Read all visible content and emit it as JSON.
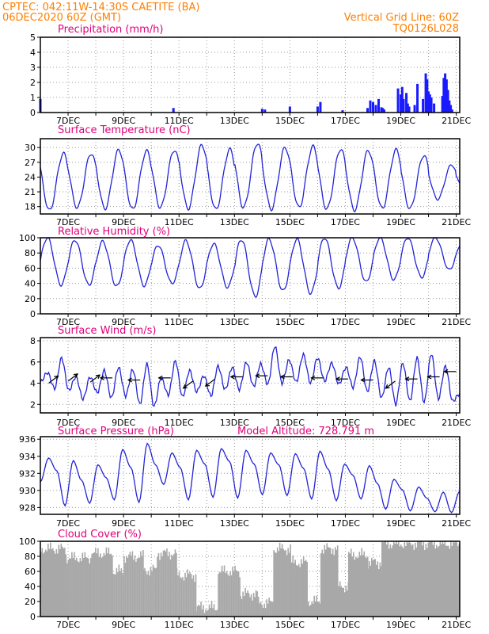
{
  "header": {
    "line1": "CPTEC:   042:11W-14:30S   CAETITE (BA)",
    "line2": "06DEC2020 60Z (GMT)",
    "right1": "Vertical Grid Line: 60Z",
    "right2": "TQ0126L028"
  },
  "x_tick_labels": [
    "7DEC",
    "9DEC",
    "11DEC",
    "13DEC",
    "15DEC",
    "17DEC",
    "19DEC",
    "21DEC"
  ],
  "colors": {
    "line": "#2323d6",
    "bar_precip": "#1a1aff",
    "bar_cloud": "#a8a8a8",
    "grid": "#999999",
    "title": "#e0007a",
    "header": "#ff7f00",
    "wind_arrow": "#000000"
  },
  "chart_data": [
    {
      "id": "precip",
      "type": "bar",
      "title": "Precipitation (mm/h)",
      "ylim": [
        0,
        5
      ],
      "yticks": [
        0,
        1,
        2,
        3,
        4,
        5
      ],
      "x_range_days": [
        6,
        21.125
      ],
      "x": [
        6.0,
        10.8,
        14.0,
        14.1,
        15.0,
        16.0,
        16.1,
        16.9,
        17.8,
        17.9,
        18.0,
        18.1,
        18.2,
        18.3,
        18.35,
        18.4,
        18.9,
        19.0,
        19.05,
        19.1,
        19.2,
        19.25,
        19.3,
        19.5,
        19.6,
        19.8,
        19.9,
        19.95,
        20.0,
        20.05,
        20.1,
        20.2,
        20.5,
        20.55,
        20.6,
        20.65,
        20.7,
        20.75,
        20.8,
        20.85
      ],
      "values": [
        0.9,
        0.3,
        0.25,
        0.2,
        0.4,
        0.4,
        0.7,
        0.15,
        0.3,
        0.8,
        0.7,
        0.5,
        0.9,
        0.35,
        0.3,
        0.2,
        1.6,
        1.2,
        1.7,
        0.9,
        1.3,
        0.6,
        0.4,
        0.5,
        1.9,
        0.9,
        2.6,
        2.2,
        1.4,
        1.2,
        1.0,
        0.6,
        1.1,
        2.3,
        2.6,
        2.2,
        1.5,
        0.8,
        0.5,
        0.2
      ]
    },
    {
      "id": "temp",
      "type": "line",
      "title": "Surface Temperature (nC)",
      "ylim": [
        16.5,
        31.8
      ],
      "yticks": [
        18,
        21,
        24,
        27,
        30
      ],
      "x_range_days": [
        6,
        21.125
      ],
      "daily_cycle": [
        {
          "min": 17.2,
          "max": 28.8
        },
        {
          "min": 17.8,
          "max": 28.8
        },
        {
          "min": 17.6,
          "max": 29.5
        },
        {
          "min": 17.4,
          "max": 29.3
        },
        {
          "min": 17.8,
          "max": 29.5
        },
        {
          "min": 17.6,
          "max": 30.5
        },
        {
          "min": 17.4,
          "max": 29.6
        },
        {
          "min": 17.8,
          "max": 30.9
        },
        {
          "min": 17.5,
          "max": 30.0
        },
        {
          "min": 17.8,
          "max": 30.2
        },
        {
          "min": 17.5,
          "max": 29.7
        },
        {
          "min": 17.3,
          "max": 29.4
        },
        {
          "min": 17.6,
          "max": 29.5
        },
        {
          "min": 17.6,
          "max": 28.4
        },
        {
          "min": 19.5,
          "max": 26.5
        },
        {
          "min": 21.5,
          "max": 25.0
        }
      ]
    },
    {
      "id": "rh",
      "type": "line",
      "title": "Relative Humidity (%)",
      "ylim": [
        0,
        100
      ],
      "yticks": [
        0,
        20,
        40,
        60,
        80,
        100
      ],
      "x_range_days": [
        6,
        21.125
      ],
      "daily_cycle": [
        {
          "min": 38,
          "max": 100
        },
        {
          "min": 38,
          "max": 97
        },
        {
          "min": 36,
          "max": 95
        },
        {
          "min": 37,
          "max": 97
        },
        {
          "min": 40,
          "max": 90
        },
        {
          "min": 33,
          "max": 96
        },
        {
          "min": 35,
          "max": 92
        },
        {
          "min": 23,
          "max": 98
        },
        {
          "min": 30,
          "max": 98
        },
        {
          "min": 27,
          "max": 98
        },
        {
          "min": 34,
          "max": 100
        },
        {
          "min": 42,
          "max": 100
        },
        {
          "min": 45,
          "max": 100
        },
        {
          "min": 48,
          "max": 100
        },
        {
          "min": 58,
          "max": 100
        },
        {
          "min": 58,
          "max": 96
        }
      ]
    },
    {
      "id": "wind",
      "type": "line",
      "title": "Surface Wind (m/s)",
      "ylim": [
        1.2,
        8.3
      ],
      "yticks": [
        2,
        4,
        6,
        8
      ],
      "x_range_days": [
        6,
        21.125
      ],
      "speeds": [
        4.1,
        5.0,
        3.5,
        6.4,
        3.3,
        4.6,
        2.5,
        4.6,
        3.1,
        5.2,
        2.6,
        5.5,
        2.8,
        5.3,
        2.0,
        5.8,
        1.8,
        4.5,
        2.9,
        6.1,
        2.7,
        5.2,
        3.2,
        4.7,
        2.8,
        5.6,
        3.4,
        5.5,
        3.4,
        6.0,
        3.7,
        5.8,
        3.9,
        7.5,
        4.0,
        6.2,
        4.1,
        6.7,
        4.0,
        6.4,
        4.2,
        5.9,
        3.9,
        5.5,
        3.6,
        6.5,
        3.2,
        6.1,
        2.6,
        5.5,
        2.0,
        5.9,
        2.3,
        6.4,
        2.2,
        6.8,
        2.5,
        5.6,
        2.3,
        3.0
      ],
      "arrows": [
        {
          "x": 6.3,
          "y": 4.0,
          "dir": "ne"
        },
        {
          "x": 7.0,
          "y": 4.2,
          "dir": "ne"
        },
        {
          "x": 7.8,
          "y": 4.1,
          "dir": "ne"
        },
        {
          "x": 8.6,
          "y": 4.5,
          "dir": "w"
        },
        {
          "x": 9.6,
          "y": 4.3,
          "dir": "w"
        },
        {
          "x": 10.7,
          "y": 4.5,
          "dir": "w"
        },
        {
          "x": 11.5,
          "y": 4.2,
          "dir": "sw"
        },
        {
          "x": 12.3,
          "y": 4.4,
          "dir": "sw"
        },
        {
          "x": 13.3,
          "y": 4.6,
          "dir": "w"
        },
        {
          "x": 14.2,
          "y": 4.7,
          "dir": "w"
        },
        {
          "x": 15.1,
          "y": 4.6,
          "dir": "w"
        },
        {
          "x": 16.2,
          "y": 4.5,
          "dir": "w"
        },
        {
          "x": 17.1,
          "y": 4.4,
          "dir": "w"
        },
        {
          "x": 18.0,
          "y": 4.3,
          "dir": "w"
        },
        {
          "x": 18.8,
          "y": 4.2,
          "dir": "sw"
        },
        {
          "x": 19.6,
          "y": 4.4,
          "dir": "w"
        },
        {
          "x": 20.4,
          "y": 4.6,
          "dir": "w"
        },
        {
          "x": 21.0,
          "y": 5.1,
          "dir": "w"
        }
      ]
    },
    {
      "id": "pressure",
      "type": "line",
      "title": "Surface Pressure (hPa)",
      "subtitle": "Model Altitude: 728.791 m",
      "ylim": [
        927.2,
        936.3
      ],
      "yticks": [
        928,
        930,
        932,
        934,
        936
      ],
      "x_range_days": [
        6,
        21.125
      ],
      "series_values": [
        931.0,
        933.8,
        932.3,
        928.2,
        933.5,
        931.2,
        928.5,
        933.0,
        931.5,
        928.9,
        934.8,
        932.7,
        928.6,
        935.5,
        933.0,
        930.7,
        934.4,
        932.7,
        928.9,
        934.7,
        933.1,
        929.2,
        934.9,
        933.4,
        929.1,
        934.7,
        933.1,
        929.5,
        934.4,
        933.0,
        929.4,
        934.3,
        932.6,
        929.0,
        934.6,
        932.5,
        928.8,
        933.1,
        931.8,
        929.0,
        932.9,
        930.8,
        927.8,
        931.3,
        930.1,
        927.6,
        930.4,
        929.1,
        927.5,
        929.8,
        927.4,
        929.9
      ]
    },
    {
      "id": "cloud",
      "type": "bar",
      "title": "Cloud Cover (%)",
      "ylim": [
        0,
        100
      ],
      "yticks": [
        0,
        20,
        40,
        60,
        80,
        100
      ],
      "x_range_days": [
        6,
        21.125
      ],
      "segments": [
        {
          "start": 6.0,
          "end": 6.9,
          "value": 90
        },
        {
          "start": 6.9,
          "end": 7.8,
          "value": 78
        },
        {
          "start": 7.8,
          "end": 8.6,
          "value": 84
        },
        {
          "start": 8.6,
          "end": 9.0,
          "value": 60
        },
        {
          "start": 9.0,
          "end": 9.7,
          "value": 80
        },
        {
          "start": 9.7,
          "end": 10.2,
          "value": 62
        },
        {
          "start": 10.2,
          "end": 10.9,
          "value": 84
        },
        {
          "start": 10.9,
          "end": 11.6,
          "value": 55
        },
        {
          "start": 11.6,
          "end": 12.4,
          "value": 12
        },
        {
          "start": 12.4,
          "end": 13.2,
          "value": 60
        },
        {
          "start": 13.2,
          "end": 13.8,
          "value": 30
        },
        {
          "start": 13.8,
          "end": 14.4,
          "value": 18
        },
        {
          "start": 14.4,
          "end": 15.0,
          "value": 90
        },
        {
          "start": 15.0,
          "end": 15.6,
          "value": 72
        },
        {
          "start": 15.6,
          "end": 16.1,
          "value": 20
        },
        {
          "start": 16.1,
          "end": 16.7,
          "value": 90
        },
        {
          "start": 16.7,
          "end": 17.1,
          "value": 40
        },
        {
          "start": 17.1,
          "end": 17.8,
          "value": 82
        },
        {
          "start": 17.8,
          "end": 18.3,
          "value": 72
        },
        {
          "start": 18.3,
          "end": 21.125,
          "value": 97
        }
      ]
    }
  ]
}
